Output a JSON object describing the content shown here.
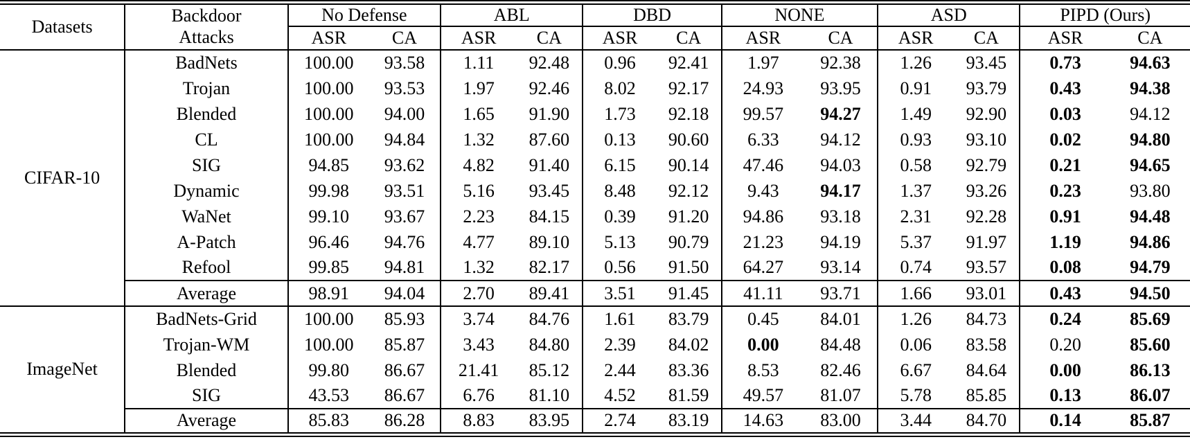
{
  "table": {
    "header": {
      "datasets_label": "Datasets",
      "attacks_line1": "Backdoor",
      "attacks_line2": "Attacks",
      "groups": [
        "No Defense",
        "ABL",
        "DBD",
        "NONE",
        "ASD",
        "PIPD (Ours)"
      ],
      "sub_labels": [
        "ASR",
        "CA"
      ]
    },
    "sections": [
      {
        "dataset": "CIFAR-10",
        "rows": [
          {
            "attack": "BadNets",
            "values": [
              "100.00",
              "93.58",
              "1.11",
              "92.48",
              "0.96",
              "92.41",
              "1.97",
              "92.38",
              "1.26",
              "93.45",
              "0.73",
              "94.63"
            ],
            "bold": [
              10,
              11
            ]
          },
          {
            "attack": "Trojan",
            "values": [
              "100.00",
              "93.53",
              "1.97",
              "92.46",
              "8.02",
              "92.17",
              "24.93",
              "93.95",
              "0.91",
              "93.79",
              "0.43",
              "94.38"
            ],
            "bold": [
              10,
              11
            ]
          },
          {
            "attack": "Blended",
            "values": [
              "100.00",
              "94.00",
              "1.65",
              "91.90",
              "1.73",
              "92.18",
              "99.57",
              "94.27",
              "1.49",
              "92.90",
              "0.03",
              "94.12"
            ],
            "bold": [
              7,
              10
            ]
          },
          {
            "attack": "CL",
            "values": [
              "100.00",
              "94.84",
              "1.32",
              "87.60",
              "0.13",
              "90.60",
              "6.33",
              "94.12",
              "0.93",
              "93.10",
              "0.02",
              "94.80"
            ],
            "bold": [
              10,
              11
            ]
          },
          {
            "attack": "SIG",
            "values": [
              "94.85",
              "93.62",
              "4.82",
              "91.40",
              "6.15",
              "90.14",
              "47.46",
              "94.03",
              "0.58",
              "92.79",
              "0.21",
              "94.65"
            ],
            "bold": [
              10,
              11
            ]
          },
          {
            "attack": "Dynamic",
            "values": [
              "99.98",
              "93.51",
              "5.16",
              "93.45",
              "8.48",
              "92.12",
              "9.43",
              "94.17",
              "1.37",
              "93.26",
              "0.23",
              "93.80"
            ],
            "bold": [
              7,
              10
            ]
          },
          {
            "attack": "WaNet",
            "values": [
              "99.10",
              "93.67",
              "2.23",
              "84.15",
              "0.39",
              "91.20",
              "94.86",
              "93.18",
              "2.31",
              "92.28",
              "0.91",
              "94.48"
            ],
            "bold": [
              10,
              11
            ]
          },
          {
            "attack": "A-Patch",
            "values": [
              "96.46",
              "94.76",
              "4.77",
              "89.10",
              "5.13",
              "90.79",
              "21.23",
              "94.19",
              "5.37",
              "91.97",
              "1.19",
              "94.86"
            ],
            "bold": [
              10,
              11
            ]
          },
          {
            "attack": "Refool",
            "values": [
              "99.85",
              "94.81",
              "1.32",
              "82.17",
              "0.56",
              "91.50",
              "64.27",
              "93.14",
              "0.74",
              "93.57",
              "0.08",
              "94.79"
            ],
            "bold": [
              10,
              11
            ]
          },
          {
            "attack": "Average",
            "is_average": true,
            "values": [
              "98.91",
              "94.04",
              "2.70",
              "89.41",
              "3.51",
              "91.45",
              "41.11",
              "93.71",
              "1.66",
              "93.01",
              "0.43",
              "94.50"
            ],
            "bold": [
              10,
              11
            ]
          }
        ]
      },
      {
        "dataset": "ImageNet",
        "rows": [
          {
            "attack": "BadNets-Grid",
            "values": [
              "100.00",
              "85.93",
              "3.74",
              "84.76",
              "1.61",
              "83.79",
              "0.45",
              "84.01",
              "1.26",
              "84.73",
              "0.24",
              "85.69"
            ],
            "bold": [
              10,
              11
            ]
          },
          {
            "attack": "Trojan-WM",
            "values": [
              "100.00",
              "85.87",
              "3.43",
              "84.80",
              "2.39",
              "84.02",
              "0.00",
              "84.48",
              "0.06",
              "83.58",
              "0.20",
              "85.60"
            ],
            "bold": [
              6,
              11
            ]
          },
          {
            "attack": "Blended",
            "values": [
              "99.80",
              "86.67",
              "21.41",
              "85.12",
              "2.44",
              "83.36",
              "8.53",
              "82.46",
              "6.67",
              "84.64",
              "0.00",
              "86.13"
            ],
            "bold": [
              10,
              11
            ]
          },
          {
            "attack": "SIG",
            "values": [
              "43.53",
              "86.67",
              "6.76",
              "81.10",
              "4.52",
              "81.59",
              "49.57",
              "81.07",
              "5.78",
              "85.85",
              "0.13",
              "86.07"
            ],
            "bold": [
              10,
              11
            ]
          },
          {
            "attack": "Average",
            "is_average": true,
            "values": [
              "85.83",
              "86.28",
              "8.83",
              "83.95",
              "2.74",
              "83.19",
              "14.63",
              "83.00",
              "3.44",
              "84.70",
              "0.14",
              "85.87"
            ],
            "bold": [
              10,
              11
            ]
          }
        ]
      }
    ]
  }
}
